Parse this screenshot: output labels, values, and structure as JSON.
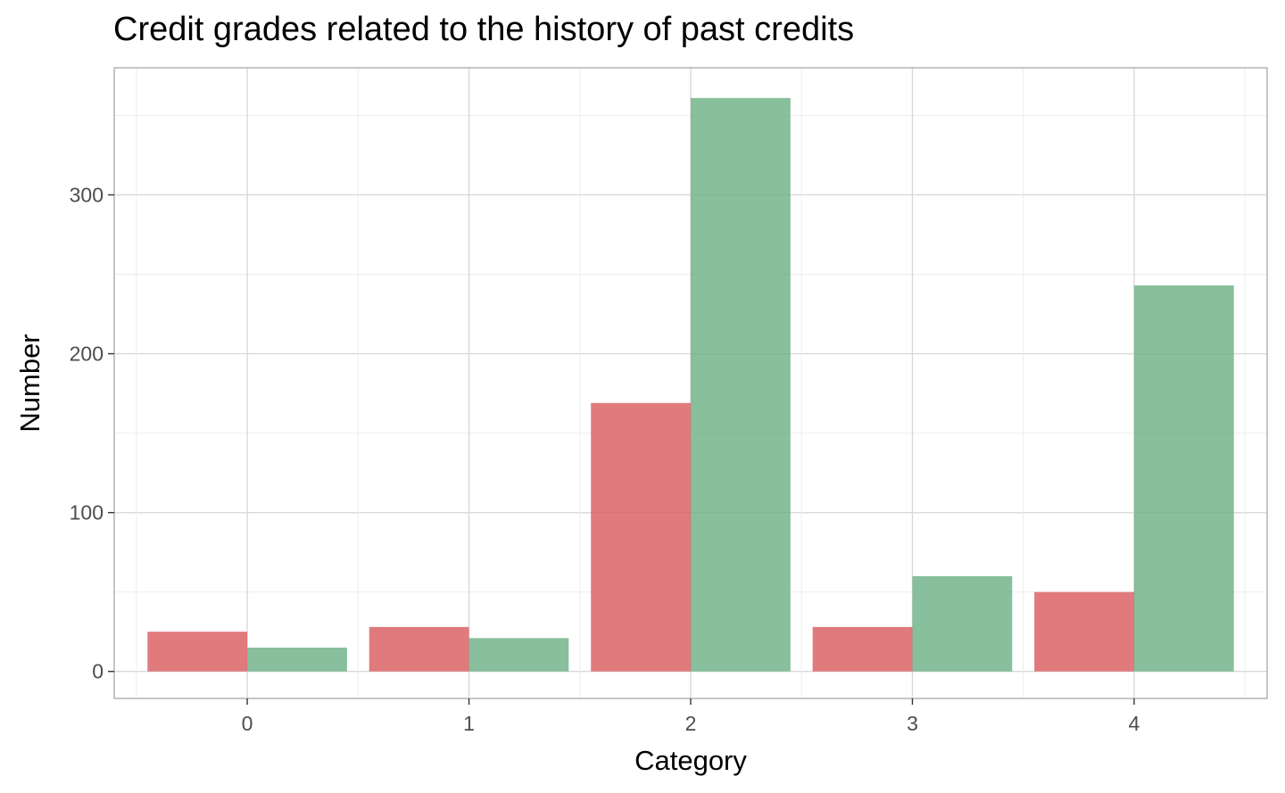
{
  "chart_data": {
    "type": "bar",
    "title": "Credit grades related to the history of past credits",
    "xlabel": "Category",
    "ylabel": "Number",
    "categories": [
      "0",
      "1",
      "2",
      "3",
      "4"
    ],
    "series": [
      {
        "values": [
          25,
          28,
          169,
          28,
          50
        ],
        "color": "#d9595c"
      },
      {
        "values": [
          15,
          21,
          361,
          60,
          243
        ],
        "color": "#6aaf83"
      }
    ],
    "ylim": [
      -17,
      380
    ],
    "yticks": [
      0,
      100,
      200,
      300
    ],
    "grid": true,
    "legend": "none"
  }
}
